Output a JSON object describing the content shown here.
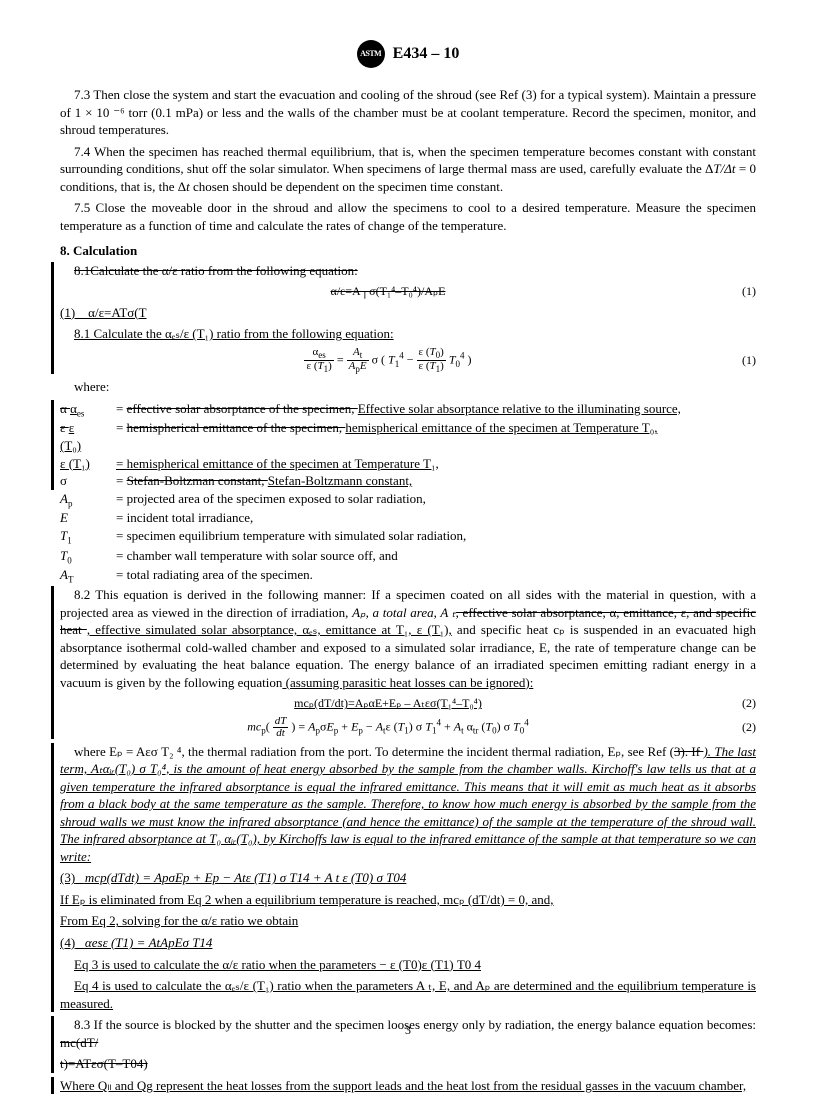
{
  "header": {
    "std": "E434 – 10"
  },
  "p73": "7.3 Then close the system and start the evacuation and cooling of the shroud (see Ref (3) for a typical system). Maintain a pressure of 1 × 10 ⁻⁶ torr (0.1 mPa) or less and the walls of the chamber must be at coolant temperature. Record the specimen, monitor, and shroud temperatures.",
  "p74a": "7.4 When the specimen has reached thermal equilibrium, that is, when the specimen temperature becomes constant with constant surrounding conditions, shut off the solar simulator. When specimens of large thermal mass are used, carefully evaluate the Δ",
  "p74b": "T/Δt",
  "p74c": " = 0 conditions, that is, the Δ",
  "p74d": "t",
  "p74e": " chosen should be dependent on the specimen time constant.",
  "p75": "7.5 Close the moveable door in the shroud and allow the specimens to cool to a desired temperature. Measure the specimen temperature as a function of time and calculate the rates of change of the temperature.",
  "s8": "8.  Calculation",
  "p81old": "8.1Calculate the α/ε ratio from the following equation:",
  "eq1old": "α/ε=A┬σ(T₁⁴–T₀⁴)/AₚE",
  "p81sub": "(1) α/ε=ATσ(T",
  "p81new": "8.1 Calculate the αₑₛ/ε (T₁) ratio from the following equation:",
  "eq1num": "(1)",
  "whereLabel": "where:",
  "w1s": "α αₑₛ",
  "w1d_s": "effective solar absorptance of the specimen, ",
  "w1d_u": "Effective solar absorptance relative to the illuminating source,",
  "w2s": "ε ε",
  "w2d_s": "hemispherical emittance of the specimen, ",
  "w2d_u": "hemispherical emittance of the specimen at Temperature T₀,",
  "w2xs": "(T₀)",
  "w3s": "ε (T₁)",
  "w3d": "hemispherical emittance of the specimen at Temperature T₁,",
  "w4s": "σ",
  "w4d_s": "Stefan-Boltzman constant, ",
  "w4d_u": "Stefan-Boltzmann constant,",
  "w5s": "Aₚ",
  "w5d": "projected area of the specimen exposed to solar radiation,",
  "w6s": "E",
  "w6d": "incident total irradiance,",
  "w7s": "T₁",
  "w7d": "specimen equilibrium temperature with simulated solar radiation,",
  "w8s": "T₀",
  "w8d": "chamber wall temperature with solar source off, and",
  "w9s": "A_T",
  "w9d": "total radiating area of the specimen.",
  "p82a": "8.2 This equation is derived in the following manner: If a specimen coated on all sides with the material in question, with a projected area as viewed in the direction of irradiation, ",
  "p82b": "Aₚ, a total area, A ₜ",
  "p82c_s": ", effective solar absorptance, α, emittance, ε, and specific heat ",
  "p82c_u": ", effective simulated solar absorptance, αₑₛ, emittance at T₁, ε (T₁),",
  "p82d": " and specific heat cₚ is suspended in an evacuated high absorptance isothermal cold-walled chamber and exposed to a simulated solar irradiance, E, the rate of temperature change can be determined by evaluating the heat balance equation. The energy balance of an irradiated specimen emitting radiant energy in a vacuum is given by the following equation",
  "p82e": " (assuming parasitic heat losses can be ignored):",
  "eq2old": "mcₚ(dT/dt)=AₚαE+Eₚ – Aₜεσ(T₁⁴–T₀⁴)",
  "eq2num": "(2)",
  "p_eptext_a": "where Eₚ = Aεσ T₂ ⁴, the thermal radiation from the port. To determine the incident thermal radiation, Eₚ, see Ref (",
  "p_eptext_s": "3). If ",
  "p_eptext_u": "). The last term, Aₜαᵢᵣ(T₀) σ T₀⁴, is the amount of heat energy absorbed by the sample from the chamber walls. Kirchoff's law tells us that at a given temperature the infrared absorptance is equal the infrared emittance. This means that it will emit as much heat as it absorbs from a black body at the same temperature as the sample. Therefore, to know how much energy is absorbed by the sample from the shroud walls we must know the infrared absorptance (and hence the emittance) of the sample at the temperature of the shroud wall. The infrared absorptance at T₀ αᵢᵣ(T₀), by Kirchoffs law is equal to the infrared emittance of the sample at that temperature so we can write:",
  "eq3": "mcp(dTdt) = ApσEp + Ep − Atε (T1) σ T14 + A t ε (T0) σ T04",
  "eq3lbl": "(3)",
  "p_ifEp": "If Eₚ is eliminated from Eq 2 when a equilibrium temperature is reached, mcₚ (dT/dt) = 0, and,",
  "p_fromEq2": "From Eq 2, solving for the α/ε ratio we obtain",
  "eq4": "αesε (T1) = AtApEσ  T14",
  "eq4lbl": "(4)",
  "p_eq3use": "Eq 3 is used to calculate the α/ε ratio when the parameters  − ε (T0)ε (T1) T0 4",
  "p_eq4use": "Eq 4 is used to calculate the αₑₛ/ε (T₁) ratio when the parameters A ₜ, E, and Aₚ are determined and the equilibrium temperature is measured.",
  "p83": "8.3 If the source is blocked by the shutter and the specimen looses energy only by radiation, the energy balance equation becomes: ",
  "p83s": "mc(dT/",
  "p83s2": "t)=ATεσ(T–T04)",
  "p_whereQ": "Where Qₗₗ and Qg represent the heat losses from the support leads and the heat lost from the residual gasses in the vacuum chamber,",
  "pagenum": "3"
}
